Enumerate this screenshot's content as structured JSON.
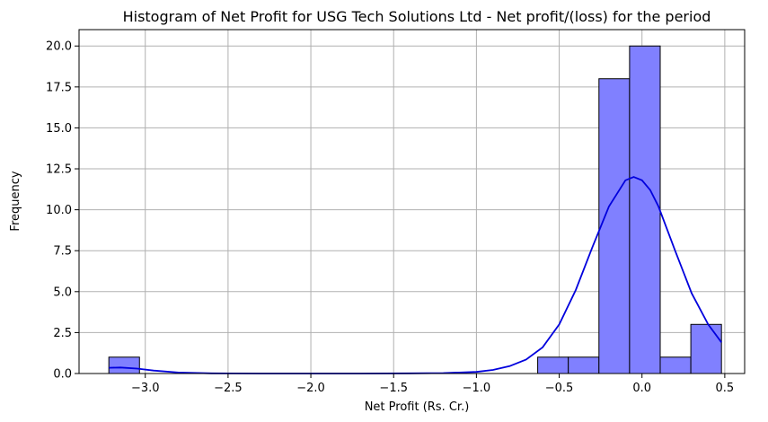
{
  "chart_data": {
    "type": "bar",
    "title": "Histogram of Net Profit for USG Tech Solutions Ltd - Net profit/(loss) for the period",
    "xlabel": "Net Profit (Rs. Cr.)",
    "ylabel": "Frequency",
    "xlim": [
      -3.4,
      0.62
    ],
    "ylim": [
      0,
      21
    ],
    "xticks": [
      -3.0,
      -2.5,
      -2.0,
      -1.5,
      -1.0,
      -0.5,
      0.0,
      0.5
    ],
    "xtick_labels": [
      "−3.0",
      "−2.5",
      "−2.0",
      "−1.5",
      "−1.0",
      "−0.5",
      "0.0",
      "0.5"
    ],
    "yticks": [
      0,
      2.5,
      5,
      7.5,
      10,
      12.5,
      15,
      17.5,
      20
    ],
    "ytick_labels": [
      "0.0",
      "2.5",
      "5.0",
      "7.5",
      "10.0",
      "12.5",
      "15.0",
      "17.5",
      "20.0"
    ],
    "grid": true,
    "bar_color": "#8080ff",
    "bar_edge_color": "#000000",
    "kde_color": "#0000dd",
    "bins": [
      {
        "x0": -3.22,
        "x1": -3.035,
        "count": 1
      },
      {
        "x0": -0.63,
        "x1": -0.445,
        "count": 1
      },
      {
        "x0": -0.445,
        "x1": -0.26,
        "count": 1
      },
      {
        "x0": -0.26,
        "x1": -0.075,
        "count": 18
      },
      {
        "x0": -0.075,
        "x1": 0.11,
        "count": 20
      },
      {
        "x0": 0.11,
        "x1": 0.295,
        "count": 1
      },
      {
        "x0": 0.295,
        "x1": 0.48,
        "count": 3
      }
    ],
    "kde": {
      "x": [
        -3.22,
        -3.15,
        -3.05,
        -2.95,
        -2.8,
        -2.6,
        -2.3,
        -2.0,
        -1.7,
        -1.4,
        -1.2,
        -1.0,
        -0.9,
        -0.8,
        -0.7,
        -0.6,
        -0.5,
        -0.4,
        -0.3,
        -0.2,
        -0.1,
        -0.05,
        0.0,
        0.05,
        0.1,
        0.2,
        0.3,
        0.4,
        0.48
      ],
      "y": [
        0.35,
        0.37,
        0.3,
        0.18,
        0.06,
        0.01,
        0.0,
        0.0,
        0.0,
        0.01,
        0.03,
        0.1,
        0.22,
        0.45,
        0.85,
        1.6,
        3.0,
        5.1,
        7.7,
        10.2,
        11.8,
        12.0,
        11.8,
        11.2,
        10.2,
        7.5,
        4.9,
        3.0,
        1.9
      ]
    }
  }
}
